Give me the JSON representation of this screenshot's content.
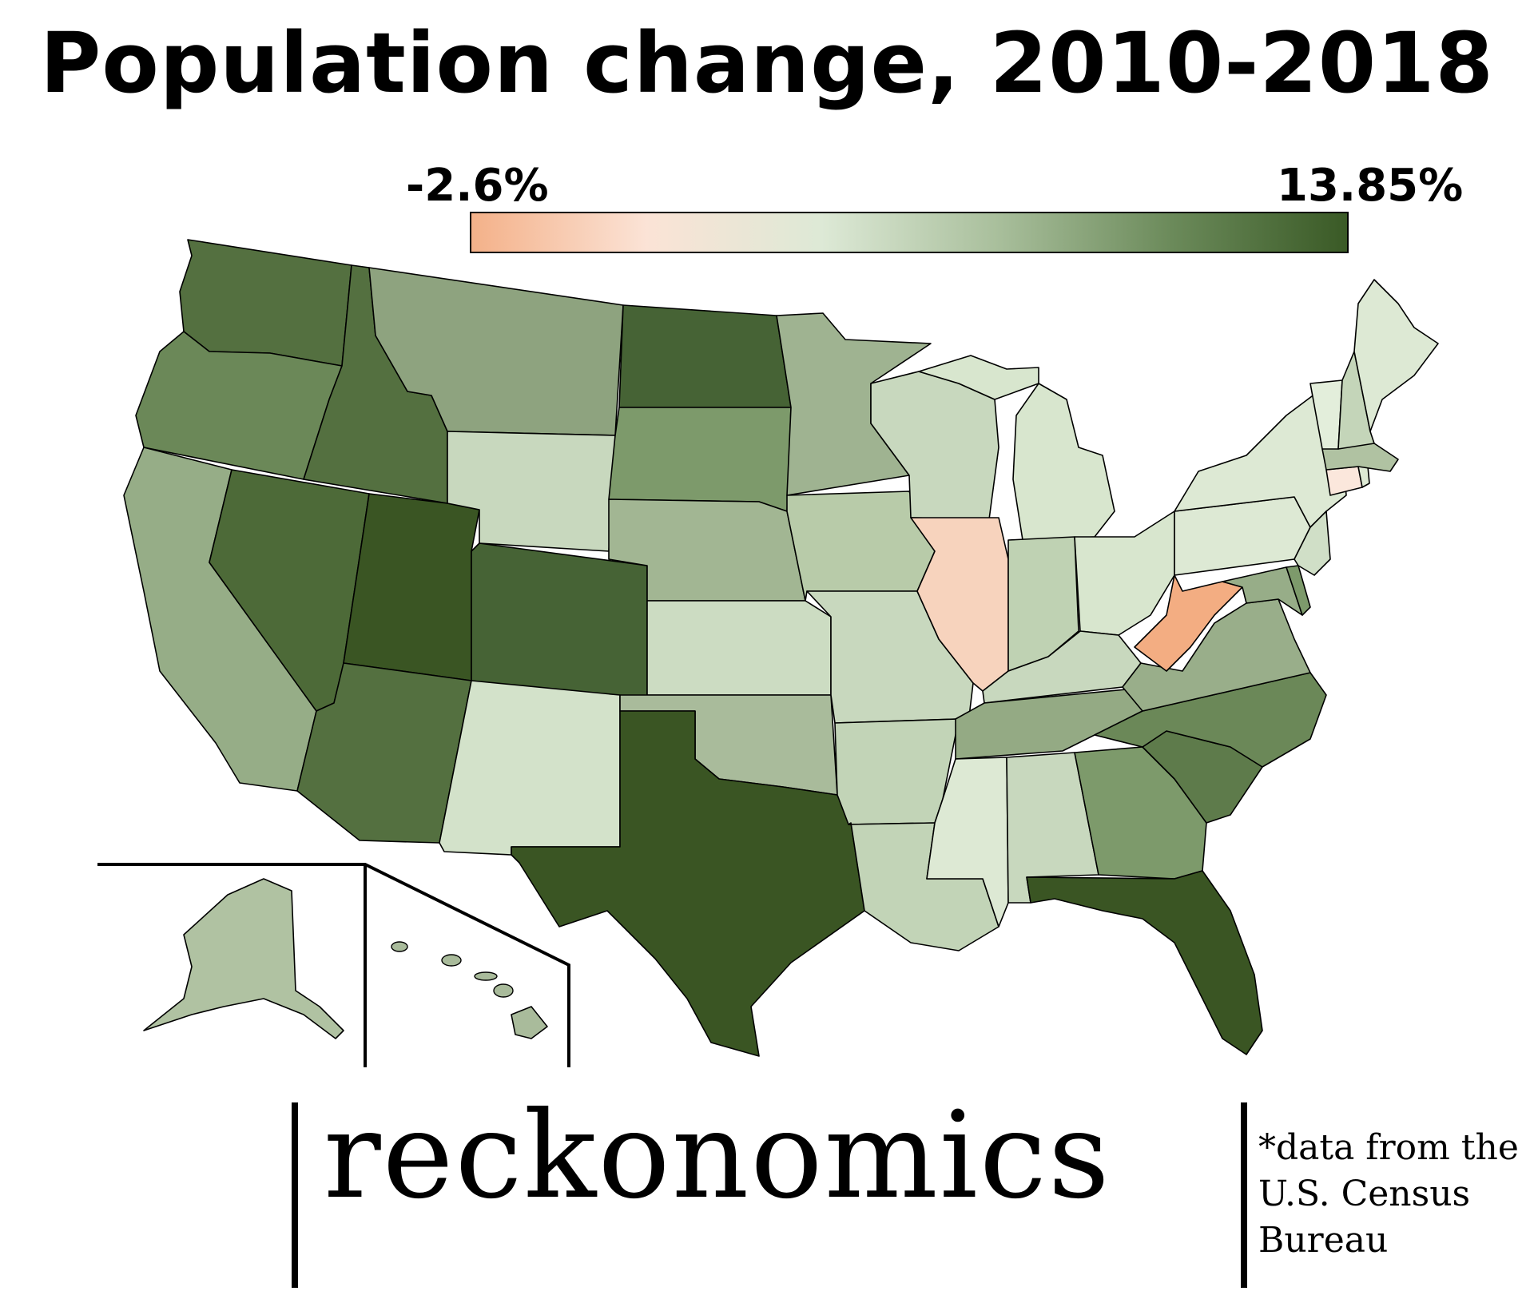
{
  "title": "Population change, 2010-2018",
  "legend": {
    "min_label": "-2.6%",
    "max_label": "13.85%",
    "min": -2.6,
    "max": 13.85,
    "colors": [
      "#f4b189",
      "#fbe3d6",
      "#dde9d6",
      "#a9bf9c",
      "#6b8a5a",
      "#3a5a26"
    ]
  },
  "brand": "reckonomics",
  "source_lines": [
    "*data from the",
    "U.S. Census",
    "Bureau"
  ],
  "colors": {
    "dark_green": "#3a5523",
    "mid_dark_green": "#547040",
    "mid_green": "#7d9a6b",
    "sage": "#8ea37f",
    "light_sage": "#a9bb9b",
    "pale_green": "#c8d8be",
    "very_pale_green": "#dde9d4",
    "pale_peach": "#f7d3bd",
    "orange": "#f3ad82",
    "outline": "#000000"
  },
  "states": [
    {
      "name": "Washington",
      "color": "#547040"
    },
    {
      "name": "Oregon",
      "color": "#6b8858"
    },
    {
      "name": "California",
      "color": "#96ad87"
    },
    {
      "name": "Idaho",
      "color": "#547040"
    },
    {
      "name": "Nevada",
      "color": "#4d6a38"
    },
    {
      "name": "Utah",
      "color": "#3a5523"
    },
    {
      "name": "Arizona",
      "color": "#547040"
    },
    {
      "name": "Montana",
      "color": "#8ea37f"
    },
    {
      "name": "Wyoming",
      "color": "#c8d8be"
    },
    {
      "name": "Colorado",
      "color": "#466335"
    },
    {
      "name": "New Mexico",
      "color": "#d3e2ca"
    },
    {
      "name": "North Dakota",
      "color": "#466335"
    },
    {
      "name": "South Dakota",
      "color": "#7d9a6b"
    },
    {
      "name": "Nebraska",
      "color": "#a2b693"
    },
    {
      "name": "Kansas",
      "color": "#ccdcc2"
    },
    {
      "name": "Oklahoma",
      "color": "#a9bb9b"
    },
    {
      "name": "Texas",
      "color": "#3a5523"
    },
    {
      "name": "Minnesota",
      "color": "#9fb391"
    },
    {
      "name": "Iowa",
      "color": "#b8cba9"
    },
    {
      "name": "Missouri",
      "color": "#c8d8be"
    },
    {
      "name": "Arkansas",
      "color": "#c2d4b7"
    },
    {
      "name": "Louisiana",
      "color": "#c2d4b7"
    },
    {
      "name": "Wisconsin",
      "color": "#c8d8be"
    },
    {
      "name": "Illinois",
      "color": "#f7d3bd"
    },
    {
      "name": "Michigan",
      "color": "#d8e6ce"
    },
    {
      "name": "Indiana",
      "color": "#bfd2b3"
    },
    {
      "name": "Ohio",
      "color": "#d8e6ce"
    },
    {
      "name": "Kentucky",
      "color": "#c8d8be"
    },
    {
      "name": "Tennessee",
      "color": "#94aa84"
    },
    {
      "name": "Mississippi",
      "color": "#dde9d4"
    },
    {
      "name": "Alabama",
      "color": "#c8d8be"
    },
    {
      "name": "Georgia",
      "color": "#7d9a6b"
    },
    {
      "name": "Florida",
      "color": "#3a5523"
    },
    {
      "name": "South Carolina",
      "color": "#5e7b4b"
    },
    {
      "name": "North Carolina",
      "color": "#6b8858"
    },
    {
      "name": "Virginia",
      "color": "#99ae8a"
    },
    {
      "name": "West Virginia",
      "color": "#f3ad82"
    },
    {
      "name": "Pennsylvania",
      "color": "#dde9d4"
    },
    {
      "name": "New York",
      "color": "#dde9d4"
    },
    {
      "name": "Maryland",
      "color": "#97ad88"
    },
    {
      "name": "Delaware",
      "color": "#7d9a6b"
    },
    {
      "name": "New Jersey",
      "color": "#d0dfc7"
    },
    {
      "name": "Connecticut",
      "color": "#fbe7dc"
    },
    {
      "name": "Rhode Island",
      "color": "#dde9d4"
    },
    {
      "name": "Massachusetts",
      "color": "#b0c2a2"
    },
    {
      "name": "Vermont",
      "color": "#e3eedb"
    },
    {
      "name": "New Hampshire",
      "color": "#c4d5b9"
    },
    {
      "name": "Maine",
      "color": "#dde9d4"
    },
    {
      "name": "Alaska",
      "color": "#b0c2a2"
    },
    {
      "name": "Hawaii",
      "color": "#a9bb9b"
    }
  ]
}
